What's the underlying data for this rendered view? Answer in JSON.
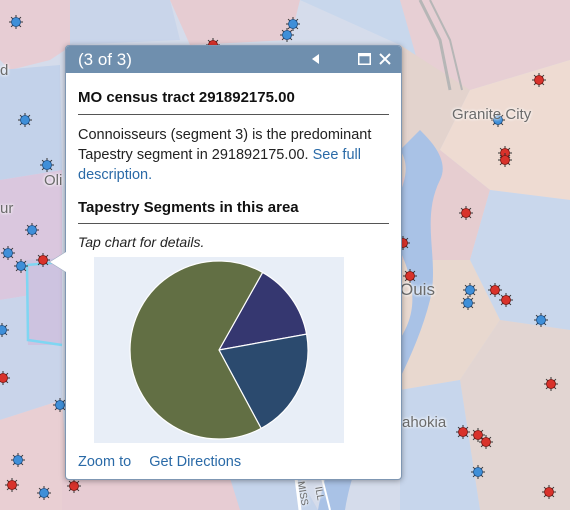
{
  "map": {
    "labels": [
      "Granite City",
      "Ouis",
      "ahokia",
      "d",
      "Oli",
      "ur",
      "MISS",
      "ILL"
    ],
    "colors": {
      "pink": "#e8cdd2",
      "blue": "#c6d6ec",
      "lavender": "#cdc4df",
      "water": "#aec5e6",
      "tan": "#e9d9cf",
      "boundary": "#7fd6f2"
    }
  },
  "popup": {
    "counter": "(3 of 3)",
    "prev_icon": "triangle-left-icon",
    "max_icon": "maximize-icon",
    "close_icon": "close-icon",
    "tract_title": "MO census tract 291892175.00",
    "desc_text": "Connoisseurs (segment 3) is the predominant Tapestry segment in 291892175.00.",
    "desc_link": "See full description.",
    "segments_title": "Tapestry Segments in this area",
    "tap_hint": "Tap chart for details.",
    "zoom_link": "Zoom to",
    "directions_link": "Get Directions"
  },
  "chart_data": {
    "type": "pie",
    "slices": [
      {
        "value": 0.66,
        "color": "#626f44"
      },
      {
        "value": 0.14,
        "color": "#353770"
      },
      {
        "value": 0.2,
        "color": "#2b4a6e"
      }
    ]
  },
  "colors": {
    "titlebar": "#6f8fae",
    "link": "#2a6aa7"
  }
}
